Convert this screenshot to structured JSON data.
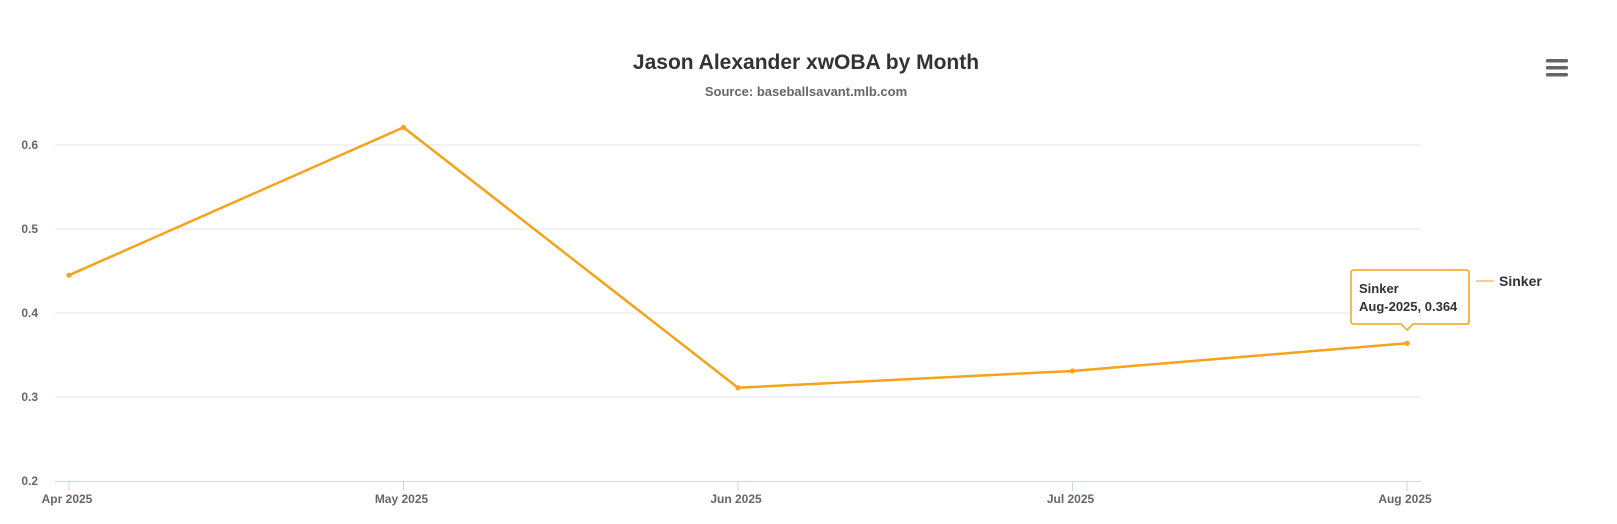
{
  "chart_data": {
    "type": "line",
    "title": "Jason Alexander xwOBA by Month",
    "subtitle": "Source: baseballsavant.mlb.com",
    "xlabel": "",
    "ylabel": "",
    "categories": [
      "Apr 2025",
      "May 2025",
      "Jun 2025",
      "Jul 2025",
      "Aug 2025"
    ],
    "y_ticks": [
      "0.2",
      "0.3",
      "0.4",
      "0.5",
      "0.6"
    ],
    "ylim": [
      0.2,
      0.65
    ],
    "grid": true,
    "legend_position": "right",
    "series": [
      {
        "name": "Sinker",
        "color": "#f7a21b",
        "values": [
          0.445,
          0.621,
          0.311,
          0.331,
          0.364
        ]
      }
    ],
    "tooltip": {
      "series": "Sinker",
      "text": "Aug-2025, 0.364"
    }
  },
  "menu": {
    "icon": "hamburger-menu-icon"
  }
}
